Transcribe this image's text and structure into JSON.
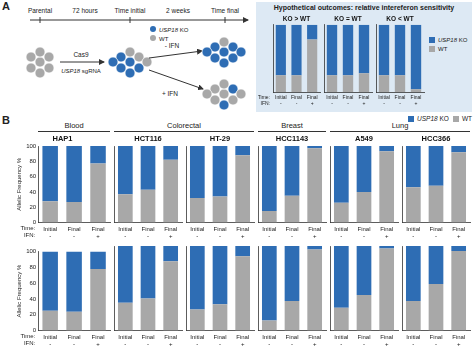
{
  "panel_labels": [
    "A",
    "B"
  ],
  "diagram": {
    "timeline": {
      "points": [
        "Parental",
        "Time initial",
        "Time final"
      ],
      "intervals": [
        "72 hours",
        "2 weeks"
      ]
    },
    "cas9": "Cas9",
    "guide": "USP18 sgRNA",
    "treatments": [
      "- IFN",
      "+ IFN"
    ],
    "legend": [
      {
        "name": "USP18 KO",
        "color": "#2e6db4"
      },
      {
        "name": "WT",
        "color": "#a8a8a8"
      }
    ]
  },
  "outcomes_title": "Hypothetical outcomes: relative intereferon sensitivity",
  "groups": [
    {
      "label": "Blood",
      "charts": [
        "HAP1"
      ]
    },
    {
      "label": "Colorectal",
      "charts": [
        "HCT116",
        "HT-29"
      ]
    },
    {
      "label": "Breast",
      "charts": [
        "HCC1143"
      ]
    },
    {
      "label": "Lung",
      "charts": [
        "A549",
        "HCC366"
      ]
    }
  ],
  "chart_data": [
    {
      "type": "bar",
      "title": "KO > WT",
      "stacked": true,
      "grid": false,
      "tick_labels": "x",
      "categories": [
        "Initial",
        "Final",
        "Final"
      ],
      "ifn": [
        "-",
        "-",
        "+"
      ],
      "x_row_labels": [
        "Time:",
        "IFN:"
      ],
      "ylim": [
        0,
        100
      ],
      "series": [
        {
          "name": "WT",
          "color": "#a8a8a8",
          "values": [
            25,
            25,
            78
          ]
        },
        {
          "name": "USP18 KO",
          "color": "#2e6db4",
          "values": [
            75,
            75,
            22
          ]
        }
      ]
    },
    {
      "type": "bar",
      "title": "KO = WT",
      "stacked": true,
      "grid": false,
      "tick_labels": "x",
      "categories": [
        "Initial",
        "Final",
        "Final"
      ],
      "ifn": [
        "-",
        "-",
        "+"
      ],
      "ylim": [
        0,
        100
      ],
      "series": [
        {
          "name": "WT",
          "color": "#a8a8a8",
          "values": [
            25,
            25,
            28
          ]
        },
        {
          "name": "USP18 KO",
          "color": "#2e6db4",
          "values": [
            75,
            75,
            72
          ]
        }
      ]
    },
    {
      "type": "bar",
      "title": "KO < WT",
      "stacked": true,
      "grid": false,
      "tick_labels": "x",
      "legend": "right",
      "categories": [
        "Initial",
        "Final",
        "Final"
      ],
      "ifn": [
        "-",
        "-",
        "+"
      ],
      "ylim": [
        0,
        100
      ],
      "series": [
        {
          "name": "WT",
          "color": "#a8a8a8",
          "values": [
            25,
            25,
            4
          ]
        },
        {
          "name": "USP18 KO",
          "color": "#2e6db4",
          "values": [
            75,
            75,
            96
          ]
        }
      ]
    },
    {
      "type": "bar",
      "title": "HAP1",
      "stacked": true,
      "grid": false,
      "y_title": "Allelic Frequency %",
      "categories": [
        "Initial",
        "Final",
        "Final"
      ],
      "ifn": [
        "-",
        "-",
        "+"
      ],
      "x_row_labels": [
        "Time:",
        "IFN:"
      ],
      "ylim": [
        0,
        100
      ],
      "yticks": [
        0,
        20,
        40,
        60,
        80,
        100
      ],
      "series": [
        {
          "name": "WT",
          "color": "#a8a8a8",
          "values": [
            28,
            27,
            77
          ]
        },
        {
          "name": "USP18 KO",
          "color": "#2e6db4",
          "values": [
            72,
            73,
            23
          ]
        }
      ]
    },
    {
      "type": "bar",
      "title": "HCT116",
      "stacked": true,
      "grid": false,
      "tick_labels": "x",
      "categories": [
        "Initial",
        "Final",
        "Final"
      ],
      "ifn": [
        "-",
        "-",
        "+"
      ],
      "ylim": [
        0,
        100
      ],
      "series": [
        {
          "name": "WT",
          "color": "#a8a8a8",
          "values": [
            37,
            43,
            82
          ]
        },
        {
          "name": "USP18 KO",
          "color": "#2e6db4",
          "values": [
            63,
            57,
            18
          ]
        }
      ]
    },
    {
      "type": "bar",
      "title": "HT-29",
      "stacked": true,
      "grid": false,
      "tick_labels": "x",
      "categories": [
        "Initial",
        "Final",
        "Final"
      ],
      "ifn": [
        "-",
        "-",
        "+"
      ],
      "ylim": [
        0,
        100
      ],
      "series": [
        {
          "name": "WT",
          "color": "#a8a8a8",
          "values": [
            32,
            34,
            88
          ]
        },
        {
          "name": "USP18 KO",
          "color": "#2e6db4",
          "values": [
            68,
            66,
            12
          ]
        }
      ]
    },
    {
      "type": "bar",
      "title": "HCC1143",
      "stacked": true,
      "grid": false,
      "tick_labels": "x",
      "categories": [
        "Initial",
        "Final",
        "Final"
      ],
      "ifn": [
        "-",
        "-",
        "+"
      ],
      "ylim": [
        0,
        100
      ],
      "series": [
        {
          "name": "WT",
          "color": "#a8a8a8",
          "values": [
            15,
            35,
            97
          ]
        },
        {
          "name": "USP18 KO",
          "color": "#2e6db4",
          "values": [
            85,
            65,
            3
          ]
        }
      ]
    },
    {
      "type": "bar",
      "title": "A549",
      "stacked": true,
      "grid": false,
      "tick_labels": "x",
      "categories": [
        "Initial",
        "Final",
        "Final"
      ],
      "ifn": [
        "-",
        "-",
        "+"
      ],
      "ylim": [
        0,
        100
      ],
      "series": [
        {
          "name": "WT",
          "color": "#a8a8a8",
          "values": [
            26,
            40,
            93
          ]
        },
        {
          "name": "USP18 KO",
          "color": "#2e6db4",
          "values": [
            74,
            60,
            7
          ]
        }
      ]
    },
    {
      "type": "bar",
      "title": "HCC366",
      "stacked": true,
      "grid": false,
      "tick_labels": "x",
      "legend": "upper right",
      "categories": [
        "Initial",
        "Final",
        "Final"
      ],
      "ifn": [
        "-",
        "-",
        "+"
      ],
      "ylim": [
        0,
        100
      ],
      "series": [
        {
          "name": "WT",
          "color": "#a8a8a8",
          "values": [
            46,
            48,
            92
          ]
        },
        {
          "name": "USP18 KO",
          "color": "#2e6db4",
          "values": [
            54,
            52,
            8
          ]
        }
      ]
    },
    {
      "type": "bar",
      "stacked": true,
      "grid": false,
      "y_title": "Allelic Frequency %",
      "categories": [
        "Initial",
        "Final",
        "Final"
      ],
      "ifn": [
        "-",
        "-",
        "+"
      ],
      "x_row_labels": [
        "Time:",
        "IFN:"
      ],
      "ylim": [
        0,
        100
      ],
      "yticks": [
        0,
        20,
        40,
        60,
        80,
        100
      ],
      "series": [
        {
          "name": "WT",
          "color": "#a8a8a8",
          "values": [
            25,
            24,
            78
          ]
        },
        {
          "name": "USP18 KO",
          "color": "#2e6db4",
          "values": [
            75,
            76,
            22
          ]
        }
      ]
    },
    {
      "type": "bar",
      "stacked": true,
      "grid": false,
      "tick_labels": "x",
      "categories": [
        "Initial",
        "Final",
        "Final"
      ],
      "ifn": [
        "-",
        "-",
        "+"
      ],
      "ylim": [
        0,
        100
      ],
      "series": [
        {
          "name": "WT",
          "color": "#a8a8a8",
          "values": [
            33,
            38,
            82
          ]
        },
        {
          "name": "USP18 KO",
          "color": "#2e6db4",
          "values": [
            67,
            62,
            18
          ]
        }
      ]
    },
    {
      "type": "bar",
      "stacked": true,
      "grid": false,
      "tick_labels": "x",
      "categories": [
        "Initial",
        "Final",
        "Final"
      ],
      "ifn": [
        "-",
        "-",
        "+"
      ],
      "ylim": [
        0,
        100
      ],
      "series": [
        {
          "name": "WT",
          "color": "#a8a8a8",
          "values": [
            25,
            31,
            88
          ]
        },
        {
          "name": "USP18 KO",
          "color": "#2e6db4",
          "values": [
            75,
            69,
            12
          ]
        }
      ]
    },
    {
      "type": "bar",
      "stacked": true,
      "grid": false,
      "tick_labels": "x",
      "categories": [
        "Initial",
        "Final",
        "Final"
      ],
      "ifn": [
        "-",
        "-",
        "+"
      ],
      "ylim": [
        0,
        100
      ],
      "series": [
        {
          "name": "WT",
          "color": "#a8a8a8",
          "values": [
            12,
            35,
            96
          ]
        },
        {
          "name": "USP18 KO",
          "color": "#2e6db4",
          "values": [
            88,
            65,
            4
          ]
        }
      ]
    },
    {
      "type": "bar",
      "stacked": true,
      "grid": false,
      "tick_labels": "x",
      "categories": [
        "Initial",
        "Final",
        "Final"
      ],
      "ifn": [
        "-",
        "-",
        "+"
      ],
      "ylim": [
        0,
        100
      ],
      "series": [
        {
          "name": "WT",
          "color": "#a8a8a8",
          "values": [
            27,
            42,
            97
          ]
        },
        {
          "name": "USP18 KO",
          "color": "#2e6db4",
          "values": [
            73,
            58,
            3
          ]
        }
      ]
    },
    {
      "type": "bar",
      "stacked": true,
      "grid": false,
      "tick_labels": "x",
      "categories": [
        "Initial",
        "Final",
        "Final"
      ],
      "ifn": [
        "-",
        "-",
        "+"
      ],
      "ylim": [
        0,
        100
      ],
      "series": [
        {
          "name": "WT",
          "color": "#a8a8a8",
          "values": [
            35,
            55,
            94
          ]
        },
        {
          "name": "USP18 KO",
          "color": "#2e6db4",
          "values": [
            65,
            45,
            6
          ]
        }
      ]
    }
  ]
}
